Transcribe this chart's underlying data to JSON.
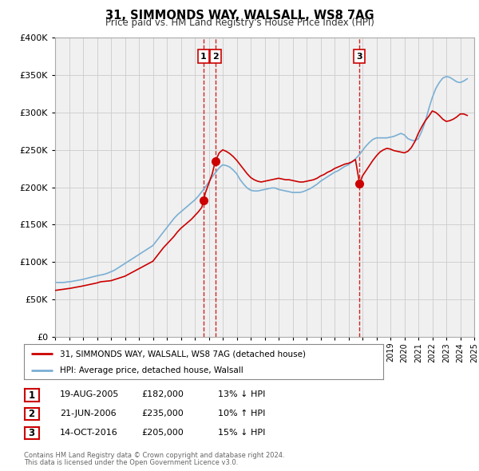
{
  "title": "31, SIMMONDS WAY, WALSALL, WS8 7AG",
  "subtitle": "Price paid vs. HM Land Registry's House Price Index (HPI)",
  "legend_line1": "31, SIMMONDS WAY, WALSALL, WS8 7AG (detached house)",
  "legend_line2": "HPI: Average price, detached house, Walsall",
  "footer1": "Contains HM Land Registry data © Crown copyright and database right 2024.",
  "footer2": "This data is licensed under the Open Government Licence v3.0.",
  "sale_color": "#cc0000",
  "hpi_color": "#7aafd4",
  "background_color": "#f0f0f0",
  "grid_color": "#cccccc",
  "ylim": [
    0,
    400000
  ],
  "yticks": [
    0,
    50000,
    100000,
    150000,
    200000,
    250000,
    300000,
    350000,
    400000
  ],
  "transactions": [
    {
      "id": 1,
      "date": "19-AUG-2005",
      "price": 182000,
      "pct": "13%",
      "dir": "↓",
      "x": 2005.63
    },
    {
      "id": 2,
      "date": "21-JUN-2006",
      "price": 235000,
      "pct": "10%",
      "dir": "↑",
      "x": 2006.47
    },
    {
      "id": 3,
      "date": "14-OCT-2016",
      "price": 205000,
      "pct": "15%",
      "dir": "↓",
      "x": 2016.79
    }
  ],
  "hpi_x": [
    1995.0,
    1995.08,
    1995.17,
    1995.25,
    1995.33,
    1995.42,
    1995.5,
    1995.58,
    1995.67,
    1995.75,
    1995.83,
    1995.92,
    1996.0,
    1996.08,
    1996.17,
    1996.25,
    1996.33,
    1996.42,
    1996.5,
    1996.58,
    1996.67,
    1996.75,
    1996.83,
    1996.92,
    1997.0,
    1997.08,
    1997.17,
    1997.25,
    1997.33,
    1997.42,
    1997.5,
    1997.58,
    1997.67,
    1997.75,
    1997.83,
    1997.92,
    1998.0,
    1998.25,
    1998.5,
    1998.75,
    1999.0,
    1999.25,
    1999.5,
    1999.75,
    2000.0,
    2000.25,
    2000.5,
    2000.75,
    2001.0,
    2001.25,
    2001.5,
    2001.75,
    2002.0,
    2002.25,
    2002.5,
    2002.75,
    2003.0,
    2003.25,
    2003.5,
    2003.75,
    2004.0,
    2004.25,
    2004.5,
    2004.75,
    2005.0,
    2005.25,
    2005.5,
    2005.75,
    2006.0,
    2006.25,
    2006.5,
    2006.75,
    2007.0,
    2007.25,
    2007.5,
    2007.75,
    2008.0,
    2008.25,
    2008.5,
    2008.75,
    2009.0,
    2009.25,
    2009.5,
    2009.75,
    2010.0,
    2010.25,
    2010.5,
    2010.75,
    2011.0,
    2011.25,
    2011.5,
    2011.75,
    2012.0,
    2012.25,
    2012.5,
    2012.75,
    2013.0,
    2013.25,
    2013.5,
    2013.75,
    2014.0,
    2014.25,
    2014.5,
    2014.75,
    2015.0,
    2015.25,
    2015.5,
    2015.75,
    2016.0,
    2016.25,
    2016.5,
    2016.75,
    2017.0,
    2017.25,
    2017.5,
    2017.75,
    2018.0,
    2018.25,
    2018.5,
    2018.75,
    2019.0,
    2019.25,
    2019.5,
    2019.75,
    2020.0,
    2020.25,
    2020.5,
    2020.75,
    2021.0,
    2021.25,
    2021.5,
    2021.75,
    2022.0,
    2022.25,
    2022.5,
    2022.75,
    2023.0,
    2023.25,
    2023.5,
    2023.75,
    2024.0,
    2024.25,
    2024.5
  ],
  "hpi_y": [
    73000,
    72800,
    72600,
    72500,
    72600,
    72700,
    72500,
    72600,
    72800,
    73000,
    73200,
    73400,
    73500,
    73700,
    73900,
    74200,
    74500,
    74800,
    75000,
    75300,
    75600,
    75900,
    76200,
    76500,
    76800,
    77200,
    77600,
    78000,
    78400,
    78800,
    79200,
    79600,
    80000,
    80400,
    80800,
    81200,
    81600,
    82500,
    83500,
    85000,
    87000,
    89000,
    92000,
    95000,
    98000,
    101000,
    104000,
    107000,
    110000,
    113000,
    116000,
    119000,
    122000,
    128000,
    134000,
    140000,
    146000,
    152000,
    158000,
    163000,
    167000,
    171000,
    175000,
    179000,
    183000,
    188000,
    194000,
    200000,
    207000,
    214000,
    220000,
    226000,
    230000,
    229000,
    227000,
    223000,
    218000,
    210000,
    204000,
    199000,
    196000,
    195000,
    195000,
    196000,
    197000,
    198000,
    199000,
    199000,
    197000,
    196000,
    195000,
    194000,
    193000,
    193000,
    193000,
    194000,
    196000,
    198000,
    201000,
    204000,
    208000,
    211000,
    214000,
    217000,
    220000,
    222000,
    225000,
    228000,
    230000,
    234000,
    238000,
    243000,
    249000,
    255000,
    260000,
    264000,
    266000,
    266000,
    266000,
    266000,
    267000,
    268000,
    270000,
    272000,
    270000,
    265000,
    263000,
    262000,
    265000,
    275000,
    288000,
    305000,
    320000,
    332000,
    340000,
    346000,
    348000,
    347000,
    344000,
    341000,
    340000,
    342000,
    345000
  ],
  "sale_x": [
    1995.0,
    1995.08,
    1995.17,
    1995.25,
    1995.33,
    1995.42,
    1995.5,
    1995.58,
    1995.67,
    1995.75,
    1995.83,
    1995.92,
    1996.0,
    1996.08,
    1996.17,
    1996.25,
    1996.33,
    1996.42,
    1996.5,
    1996.58,
    1996.67,
    1996.75,
    1996.83,
    1996.92,
    1997.0,
    1997.25,
    1997.5,
    1997.75,
    1998.0,
    1998.25,
    1998.5,
    1998.75,
    1999.0,
    1999.25,
    1999.5,
    1999.75,
    2000.0,
    2000.25,
    2000.5,
    2000.75,
    2001.0,
    2001.25,
    2001.5,
    2001.75,
    2002.0,
    2002.25,
    2002.5,
    2002.75,
    2003.0,
    2003.25,
    2003.5,
    2003.75,
    2004.0,
    2004.25,
    2004.5,
    2004.75,
    2005.0,
    2005.25,
    2005.5,
    2005.63,
    2005.75,
    2006.0,
    2006.25,
    2006.47,
    2006.75,
    2007.0,
    2007.25,
    2007.5,
    2007.75,
    2008.0,
    2008.25,
    2008.5,
    2008.75,
    2009.0,
    2009.25,
    2009.5,
    2009.75,
    2010.0,
    2010.25,
    2010.5,
    2010.75,
    2011.0,
    2011.25,
    2011.5,
    2011.75,
    2012.0,
    2012.25,
    2012.5,
    2012.75,
    2013.0,
    2013.25,
    2013.5,
    2013.75,
    2014.0,
    2014.25,
    2014.5,
    2014.75,
    2015.0,
    2015.25,
    2015.5,
    2015.75,
    2016.0,
    2016.25,
    2016.5,
    2016.79,
    2017.0,
    2017.25,
    2017.5,
    2017.75,
    2018.0,
    2018.25,
    2018.5,
    2018.75,
    2019.0,
    2019.25,
    2019.5,
    2019.75,
    2020.0,
    2020.25,
    2020.5,
    2020.75,
    2021.0,
    2021.25,
    2021.5,
    2021.75,
    2022.0,
    2022.25,
    2022.5,
    2022.75,
    2023.0,
    2023.25,
    2023.5,
    2023.75,
    2024.0,
    2024.25,
    2024.5
  ],
  "sale_y": [
    62000,
    62200,
    62400,
    62600,
    62800,
    63000,
    63200,
    63400,
    63600,
    63800,
    64000,
    64200,
    64500,
    64800,
    65100,
    65400,
    65700,
    66000,
    66200,
    66500,
    66800,
    67100,
    67400,
    67700,
    68000,
    69000,
    70000,
    71000,
    72000,
    73500,
    74000,
    74500,
    75000,
    76500,
    78000,
    79500,
    81000,
    83500,
    86000,
    88500,
    91000,
    93500,
    96000,
    98500,
    101000,
    107000,
    113000,
    119000,
    124000,
    129000,
    134000,
    140000,
    145000,
    149000,
    153000,
    157000,
    162000,
    167000,
    173000,
    182000,
    192000,
    205000,
    218000,
    235000,
    246000,
    250000,
    248000,
    245000,
    241000,
    236000,
    230000,
    224000,
    218000,
    213000,
    210000,
    208000,
    207000,
    208000,
    209000,
    210000,
    211000,
    212000,
    211000,
    210000,
    210000,
    209000,
    208000,
    207000,
    207000,
    208000,
    209000,
    210000,
    212000,
    215000,
    217000,
    220000,
    222000,
    225000,
    227000,
    229000,
    231000,
    232000,
    234000,
    237000,
    205000,
    215000,
    222000,
    229000,
    236000,
    242000,
    247000,
    250000,
    252000,
    251000,
    249000,
    248000,
    247000,
    246000,
    248000,
    253000,
    261000,
    272000,
    281000,
    289000,
    295000,
    302000,
    300000,
    296000,
    291000,
    288000,
    289000,
    291000,
    294000,
    298000,
    298000,
    296000
  ]
}
